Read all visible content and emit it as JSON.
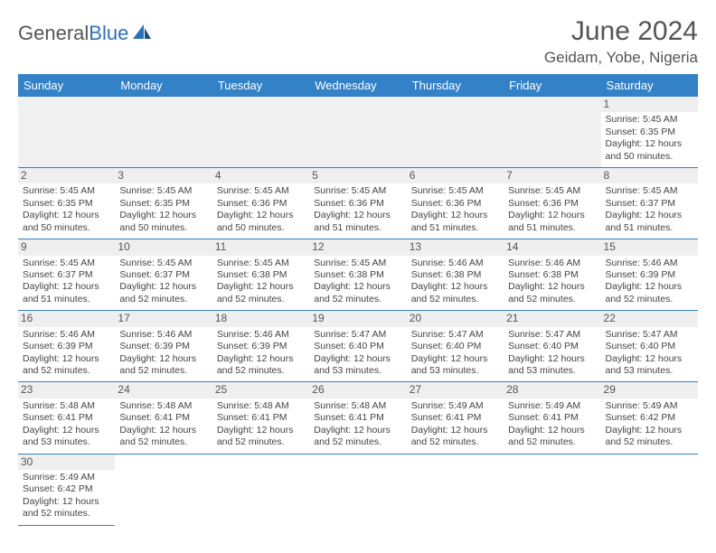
{
  "logo": {
    "part1": "General",
    "part2": "Blue"
  },
  "title": "June 2024",
  "location": "Geidam, Yobe, Nigeria",
  "colors": {
    "header_bg": "#3381c6",
    "header_text": "#ffffff",
    "rule": "#3381c6",
    "daynum_bg": "#efefef",
    "empty_bg": "#f1f1f1",
    "text": "#444444",
    "logo_gray": "#555555",
    "logo_blue": "#2d72b8"
  },
  "day_headers": [
    "Sunday",
    "Monday",
    "Tuesday",
    "Wednesday",
    "Thursday",
    "Friday",
    "Saturday"
  ],
  "weeks": [
    [
      null,
      null,
      null,
      null,
      null,
      null,
      {
        "n": "1",
        "sr": "Sunrise: 5:45 AM",
        "ss": "Sunset: 6:35 PM",
        "d1": "Daylight: 12 hours",
        "d2": "and 50 minutes."
      }
    ],
    [
      {
        "n": "2",
        "sr": "Sunrise: 5:45 AM",
        "ss": "Sunset: 6:35 PM",
        "d1": "Daylight: 12 hours",
        "d2": "and 50 minutes."
      },
      {
        "n": "3",
        "sr": "Sunrise: 5:45 AM",
        "ss": "Sunset: 6:35 PM",
        "d1": "Daylight: 12 hours",
        "d2": "and 50 minutes."
      },
      {
        "n": "4",
        "sr": "Sunrise: 5:45 AM",
        "ss": "Sunset: 6:36 PM",
        "d1": "Daylight: 12 hours",
        "d2": "and 50 minutes."
      },
      {
        "n": "5",
        "sr": "Sunrise: 5:45 AM",
        "ss": "Sunset: 6:36 PM",
        "d1": "Daylight: 12 hours",
        "d2": "and 51 minutes."
      },
      {
        "n": "6",
        "sr": "Sunrise: 5:45 AM",
        "ss": "Sunset: 6:36 PM",
        "d1": "Daylight: 12 hours",
        "d2": "and 51 minutes."
      },
      {
        "n": "7",
        "sr": "Sunrise: 5:45 AM",
        "ss": "Sunset: 6:36 PM",
        "d1": "Daylight: 12 hours",
        "d2": "and 51 minutes."
      },
      {
        "n": "8",
        "sr": "Sunrise: 5:45 AM",
        "ss": "Sunset: 6:37 PM",
        "d1": "Daylight: 12 hours",
        "d2": "and 51 minutes."
      }
    ],
    [
      {
        "n": "9",
        "sr": "Sunrise: 5:45 AM",
        "ss": "Sunset: 6:37 PM",
        "d1": "Daylight: 12 hours",
        "d2": "and 51 minutes."
      },
      {
        "n": "10",
        "sr": "Sunrise: 5:45 AM",
        "ss": "Sunset: 6:37 PM",
        "d1": "Daylight: 12 hours",
        "d2": "and 52 minutes."
      },
      {
        "n": "11",
        "sr": "Sunrise: 5:45 AM",
        "ss": "Sunset: 6:38 PM",
        "d1": "Daylight: 12 hours",
        "d2": "and 52 minutes."
      },
      {
        "n": "12",
        "sr": "Sunrise: 5:45 AM",
        "ss": "Sunset: 6:38 PM",
        "d1": "Daylight: 12 hours",
        "d2": "and 52 minutes."
      },
      {
        "n": "13",
        "sr": "Sunrise: 5:46 AM",
        "ss": "Sunset: 6:38 PM",
        "d1": "Daylight: 12 hours",
        "d2": "and 52 minutes."
      },
      {
        "n": "14",
        "sr": "Sunrise: 5:46 AM",
        "ss": "Sunset: 6:38 PM",
        "d1": "Daylight: 12 hours",
        "d2": "and 52 minutes."
      },
      {
        "n": "15",
        "sr": "Sunrise: 5:46 AM",
        "ss": "Sunset: 6:39 PM",
        "d1": "Daylight: 12 hours",
        "d2": "and 52 minutes."
      }
    ],
    [
      {
        "n": "16",
        "sr": "Sunrise: 5:46 AM",
        "ss": "Sunset: 6:39 PM",
        "d1": "Daylight: 12 hours",
        "d2": "and 52 minutes."
      },
      {
        "n": "17",
        "sr": "Sunrise: 5:46 AM",
        "ss": "Sunset: 6:39 PM",
        "d1": "Daylight: 12 hours",
        "d2": "and 52 minutes."
      },
      {
        "n": "18",
        "sr": "Sunrise: 5:46 AM",
        "ss": "Sunset: 6:39 PM",
        "d1": "Daylight: 12 hours",
        "d2": "and 52 minutes."
      },
      {
        "n": "19",
        "sr": "Sunrise: 5:47 AM",
        "ss": "Sunset: 6:40 PM",
        "d1": "Daylight: 12 hours",
        "d2": "and 53 minutes."
      },
      {
        "n": "20",
        "sr": "Sunrise: 5:47 AM",
        "ss": "Sunset: 6:40 PM",
        "d1": "Daylight: 12 hours",
        "d2": "and 53 minutes."
      },
      {
        "n": "21",
        "sr": "Sunrise: 5:47 AM",
        "ss": "Sunset: 6:40 PM",
        "d1": "Daylight: 12 hours",
        "d2": "and 53 minutes."
      },
      {
        "n": "22",
        "sr": "Sunrise: 5:47 AM",
        "ss": "Sunset: 6:40 PM",
        "d1": "Daylight: 12 hours",
        "d2": "and 53 minutes."
      }
    ],
    [
      {
        "n": "23",
        "sr": "Sunrise: 5:48 AM",
        "ss": "Sunset: 6:41 PM",
        "d1": "Daylight: 12 hours",
        "d2": "and 53 minutes."
      },
      {
        "n": "24",
        "sr": "Sunrise: 5:48 AM",
        "ss": "Sunset: 6:41 PM",
        "d1": "Daylight: 12 hours",
        "d2": "and 52 minutes."
      },
      {
        "n": "25",
        "sr": "Sunrise: 5:48 AM",
        "ss": "Sunset: 6:41 PM",
        "d1": "Daylight: 12 hours",
        "d2": "and 52 minutes."
      },
      {
        "n": "26",
        "sr": "Sunrise: 5:48 AM",
        "ss": "Sunset: 6:41 PM",
        "d1": "Daylight: 12 hours",
        "d2": "and 52 minutes."
      },
      {
        "n": "27",
        "sr": "Sunrise: 5:49 AM",
        "ss": "Sunset: 6:41 PM",
        "d1": "Daylight: 12 hours",
        "d2": "and 52 minutes."
      },
      {
        "n": "28",
        "sr": "Sunrise: 5:49 AM",
        "ss": "Sunset: 6:41 PM",
        "d1": "Daylight: 12 hours",
        "d2": "and 52 minutes."
      },
      {
        "n": "29",
        "sr": "Sunrise: 5:49 AM",
        "ss": "Sunset: 6:42 PM",
        "d1": "Daylight: 12 hours",
        "d2": "and 52 minutes."
      }
    ],
    [
      {
        "n": "30",
        "sr": "Sunrise: 5:49 AM",
        "ss": "Sunset: 6:42 PM",
        "d1": "Daylight: 12 hours",
        "d2": "and 52 minutes."
      },
      null,
      null,
      null,
      null,
      null,
      null
    ]
  ]
}
